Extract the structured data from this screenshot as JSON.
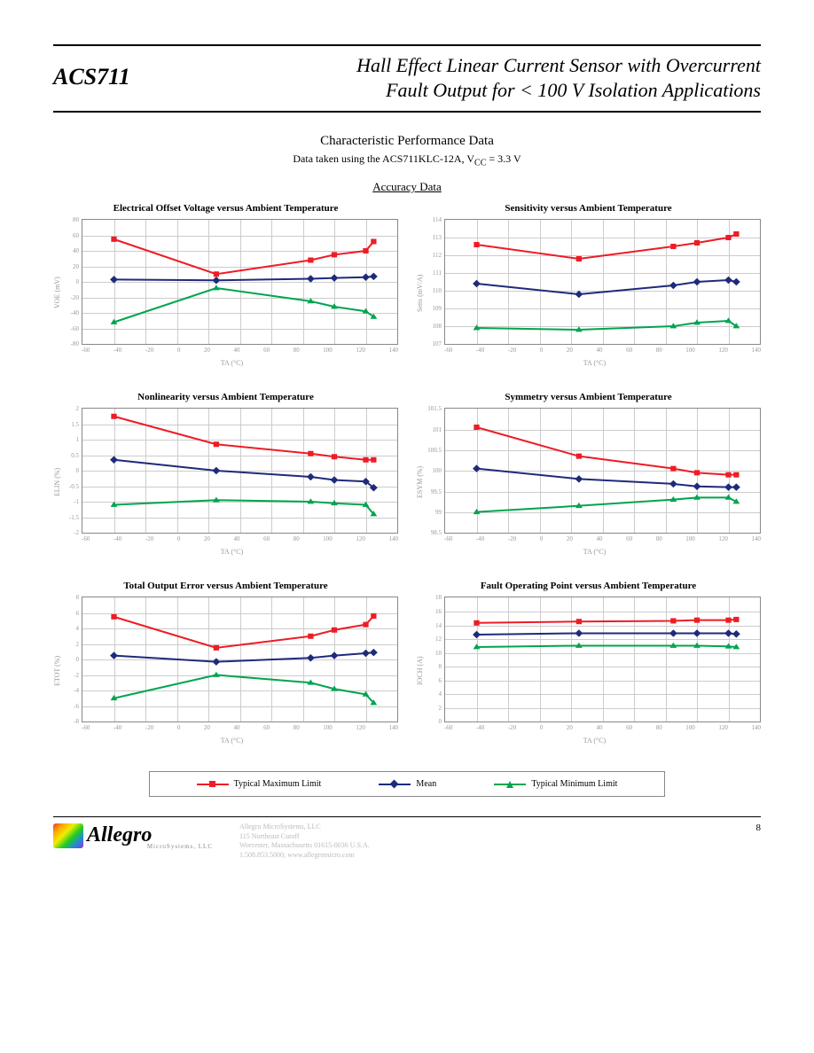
{
  "header": {
    "part_number": "ACS711",
    "title_line1": "Hall Effect Linear Current Sensor with Overcurrent",
    "title_line2": "Fault Output for < 100 V Isolation Applications"
  },
  "section": {
    "title": "Characteristic Performance Data",
    "subtitle_prefix": "Data taken using the ACS711KLC-12A, V",
    "subtitle_sub": "CC",
    "subtitle_suffix": " = 3.3 V",
    "accuracy_heading": "Accuracy Data"
  },
  "x_axis": {
    "label": "TA (°C)",
    "ticks": [
      "-60",
      "-40",
      "-20",
      "0",
      "20",
      "40",
      "60",
      "80",
      "100",
      "120",
      "140"
    ],
    "min": -60,
    "max": 140
  },
  "colors": {
    "max": "#ee1c25",
    "mean": "#1e2a7a",
    "min": "#00a54f",
    "grid": "#cccccc",
    "axis_text": "#999999",
    "border": "#888888"
  },
  "markers": {
    "max": "square",
    "mean": "diamond",
    "min": "triangle"
  },
  "line_width": 2,
  "marker_size": 6,
  "charts": [
    {
      "title": "Electrical Offset Voltage versus Ambient Temperature",
      "ylabel": "VOE (mV)",
      "ymin": -80,
      "ymax": 80,
      "ystep": 20,
      "data_x": [
        -40,
        25,
        85,
        100,
        120,
        125
      ],
      "max": [
        55,
        10,
        28,
        35,
        40,
        52
      ],
      "mean": [
        3,
        2,
        4,
        5,
        6,
        7
      ],
      "min": [
        -52,
        -8,
        -25,
        -32,
        -38,
        -45
      ]
    },
    {
      "title": "Sensitivity versus Ambient Temperature",
      "ylabel": "Sens (mV/A)",
      "ymin": 107,
      "ymax": 114,
      "ystep": 1,
      "data_x": [
        -40,
        25,
        85,
        100,
        120,
        125
      ],
      "max": [
        112.6,
        111.8,
        112.5,
        112.7,
        113.0,
        113.2
      ],
      "mean": [
        110.4,
        109.8,
        110.3,
        110.5,
        110.6,
        110.5
      ],
      "min": [
        107.9,
        107.8,
        108.0,
        108.2,
        108.3,
        108.0
      ]
    },
    {
      "title": "Nonlinearity versus Ambient Temperature",
      "ylabel": "ELIN (%)",
      "ymin": -2.0,
      "ymax": 2.0,
      "ystep": 0.5,
      "data_x": [
        -40,
        25,
        85,
        100,
        120,
        125
      ],
      "max": [
        1.75,
        0.85,
        0.55,
        0.45,
        0.35,
        0.35
      ],
      "mean": [
        0.35,
        0.0,
        -0.2,
        -0.3,
        -0.35,
        -0.55
      ],
      "min": [
        -1.1,
        -0.95,
        -1.0,
        -1.05,
        -1.1,
        -1.4
      ]
    },
    {
      "title": "Symmetry versus Ambient Temperature",
      "ylabel": "ESYM (%)",
      "ymin": 98.5,
      "ymax": 101.5,
      "ystep": 0.5,
      "data_x": [
        -40,
        25,
        85,
        100,
        120,
        125
      ],
      "max": [
        101.05,
        100.35,
        100.05,
        99.95,
        99.9,
        99.9
      ],
      "mean": [
        100.05,
        99.8,
        99.68,
        99.62,
        99.6,
        99.6
      ],
      "min": [
        99.0,
        99.15,
        99.3,
        99.35,
        99.35,
        99.25
      ]
    },
    {
      "title": "Total Output Error versus Ambient Temperature",
      "ylabel": "ETOT (%)",
      "ymin": -8,
      "ymax": 8,
      "ystep": 2,
      "data_x": [
        -40,
        25,
        85,
        100,
        120,
        125
      ],
      "max": [
        5.5,
        1.5,
        3.0,
        3.8,
        4.5,
        5.6
      ],
      "mean": [
        0.5,
        -0.3,
        0.2,
        0.5,
        0.8,
        0.9
      ],
      "min": [
        -5.0,
        -2.0,
        -3.0,
        -3.8,
        -4.5,
        -5.6
      ]
    },
    {
      "title": "Fault Operating Point versus Ambient Temperature",
      "ylabel": "IOCH (A)",
      "ymin": 0,
      "ymax": 18,
      "ystep": 2,
      "data_x": [
        -40,
        25,
        85,
        100,
        120,
        125
      ],
      "max": [
        14.3,
        14.5,
        14.6,
        14.7,
        14.7,
        14.8
      ],
      "mean": [
        12.6,
        12.8,
        12.8,
        12.8,
        12.8,
        12.7
      ],
      "min": [
        10.8,
        11.0,
        11.0,
        11.0,
        10.9,
        10.8
      ]
    }
  ],
  "legend": {
    "max": "Typical Maximum Limit",
    "mean": "Mean",
    "min": "Typical Minimum Limit"
  },
  "footer": {
    "company": "Allegro",
    "tagline": "MicroSystems, LLC",
    "addr1": "Allegro MicroSystems, LLC",
    "addr2": "115 Northeast Cutoff",
    "addr3": "Worcester, Massachusetts 01615-0036 U.S.A.",
    "addr4": "1.508.853.5000; www.allegromicro.com",
    "page": "8"
  }
}
